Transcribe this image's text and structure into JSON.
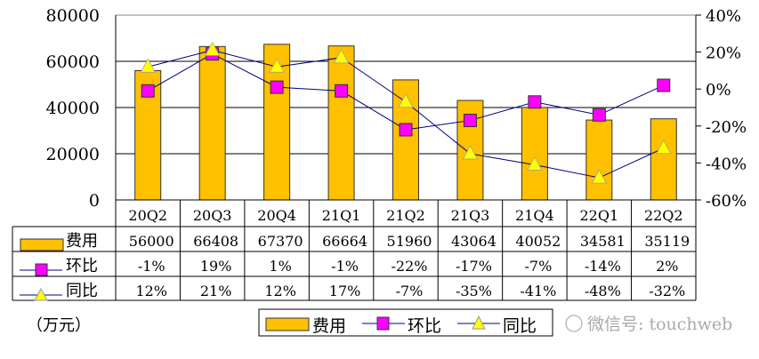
{
  "chart_data": {
    "type": "bar+line",
    "categories": [
      "20Q2",
      "20Q3",
      "20Q4",
      "21Q1",
      "21Q2",
      "21Q3",
      "21Q4",
      "22Q1",
      "22Q2"
    ],
    "series": [
      {
        "name": "费用",
        "type": "bar",
        "axis": "left",
        "values": [
          56000,
          66408,
          67370,
          66664,
          51960,
          43064,
          40052,
          34581,
          35119
        ],
        "labels": [
          "56000",
          "66408",
          "67370",
          "66664",
          "51960",
          "43064",
          "40052",
          "34581",
          "35119"
        ]
      },
      {
        "name": "环比",
        "type": "line",
        "axis": "right",
        "marker": "square",
        "values": [
          -1,
          19,
          1,
          -1,
          -22,
          -17,
          -7,
          -14,
          2
        ],
        "labels": [
          "-1%",
          "19%",
          "1%",
          "-1%",
          "-22%",
          "-17%",
          "-7%",
          "-14%",
          "2%"
        ]
      },
      {
        "name": "同比",
        "type": "line",
        "axis": "right",
        "marker": "triangle",
        "values": [
          12,
          21,
          12,
          17,
          -7,
          -35,
          -41,
          -48,
          -32
        ],
        "labels": [
          "12%",
          "21%",
          "12%",
          "17%",
          "-7%",
          "-35%",
          "-41%",
          "-48%",
          "-32%"
        ]
      }
    ],
    "ylim_left": [
      0,
      80000
    ],
    "yticks_left": [
      "0",
      "20000",
      "40000",
      "60000",
      "80000"
    ],
    "ylim_right": [
      -60,
      40
    ],
    "yticks_right": [
      "-60%",
      "-40%",
      "-20%",
      "0%",
      "20%",
      "40%"
    ],
    "unit_label": "（万元）",
    "grid": true,
    "legend_placement": "bottom",
    "data_table": true,
    "colors": {
      "bar": "#FFC000",
      "square": "#FF00FF",
      "triangle": "#FFFF00",
      "line": "#000080"
    }
  },
  "watermark": "微信号: touchweb"
}
